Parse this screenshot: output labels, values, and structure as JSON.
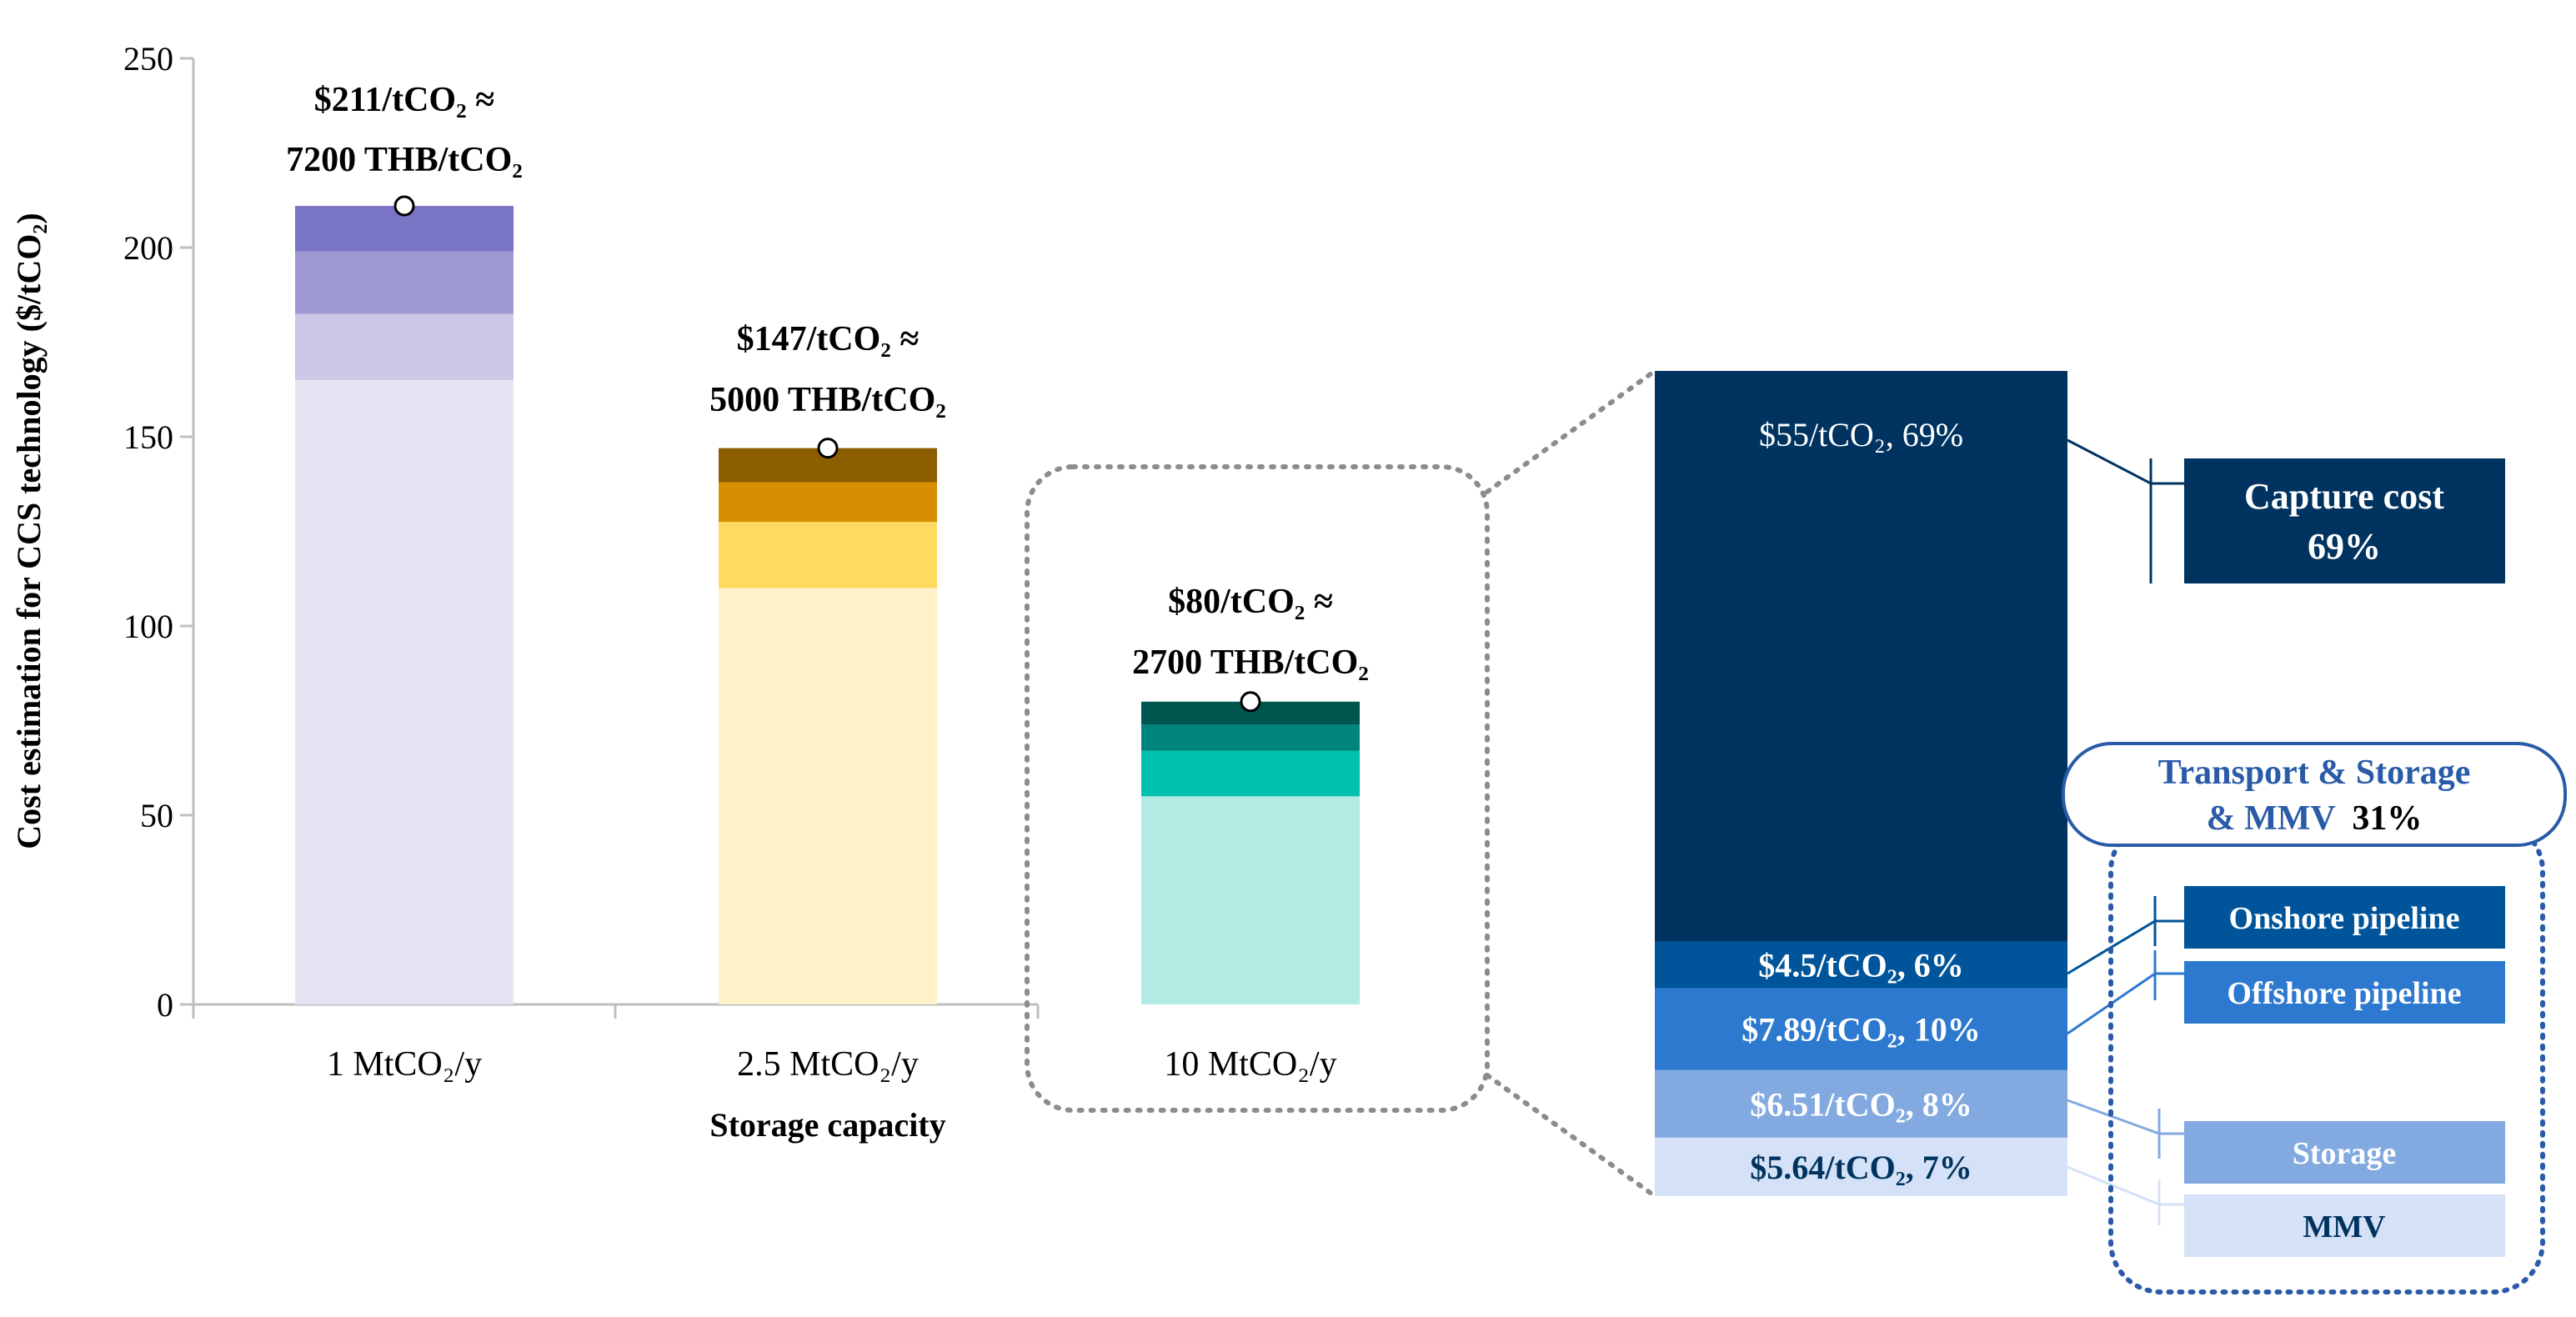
{
  "chart_data": [
    {
      "type": "bar",
      "stacked": true,
      "ylabel": "Cost estimation for CCS technology ($/tCO₂)",
      "xlabel": "Storage capacity",
      "ylim": [
        0,
        250
      ],
      "yticks": [
        0,
        50,
        100,
        150,
        200,
        250
      ],
      "grid": false,
      "categories": [
        "1 MtCO₂/y",
        "2.5 MtCO₂/y",
        "10 MtCO₂/y"
      ],
      "totals": [
        211,
        147,
        80
      ],
      "bars": [
        {
          "category": "1 MtCO₂/y",
          "segments": [
            165,
            17.5,
            16.5,
            12
          ],
          "colors": [
            "#E6E3F3",
            "#CBC8E8",
            "#9F9AD3",
            "#7A74C4"
          ],
          "label_line1": "$211/tCO₂ ≈",
          "label_line2": "7200 THB/tCO₂"
        },
        {
          "category": "2.5 MtCO₂/y",
          "segments": [
            110,
            17.5,
            10.5,
            9
          ],
          "colors": [
            "#FFF1C9",
            "#FFDA60",
            "#D58F00",
            "#8C5E00"
          ],
          "label_line1": "$147/tCO₂ ≈",
          "label_line2": "5000 THB/tCO₂"
        },
        {
          "category": "10 MtCO₂/y",
          "segments": [
            55,
            12,
            7,
            6
          ],
          "colors": [
            "#B3EBE4",
            "#00C0AE",
            "#00857D",
            "#00554E"
          ],
          "label_line1": "$80/tCO₂ ≈",
          "label_line2": "2700 THB/tCO₂"
        }
      ]
    },
    {
      "type": "bar",
      "stacked": true,
      "breakdown_of": "10 MtCO₂/y",
      "segments": [
        {
          "name": "Capture cost",
          "value": 55,
          "label": "$55/tCO₂, 69%",
          "color": "#003360"
        },
        {
          "name": "Onshore pipeline",
          "value": 4.5,
          "label": "$4.5/tCO₂, 6%",
          "color": "#005499"
        },
        {
          "name": "Offshore pipeline",
          "value": 7.89,
          "label": "$7.89/tCO₂, 10%",
          "color": "#2D79CF"
        },
        {
          "name": "Storage",
          "value": 6.51,
          "label": "$6.51/tCO₂, 8%",
          "color": "#82A9E0"
        },
        {
          "name": "MMV",
          "value": 5.64,
          "label": "$5.64/tCO₂, 7%",
          "color": "#D4E1F6"
        }
      ]
    }
  ],
  "legend": {
    "capture_title": "Capture cost",
    "capture_pct": "69%",
    "transport_line1": "Transport & Storage",
    "transport_line2": "& MMV",
    "transport_pct": "31%",
    "onshore": "Onshore pipeline",
    "offshore": "Offshore pipeline",
    "storage": "Storage",
    "mmv": "MMV"
  },
  "colors": {
    "axis": "#BFBFBF",
    "text": "#000000",
    "dotted_outline": "#8C8C8C",
    "legend_dark": "#003360",
    "legend_outline": "#2A5BA8"
  }
}
